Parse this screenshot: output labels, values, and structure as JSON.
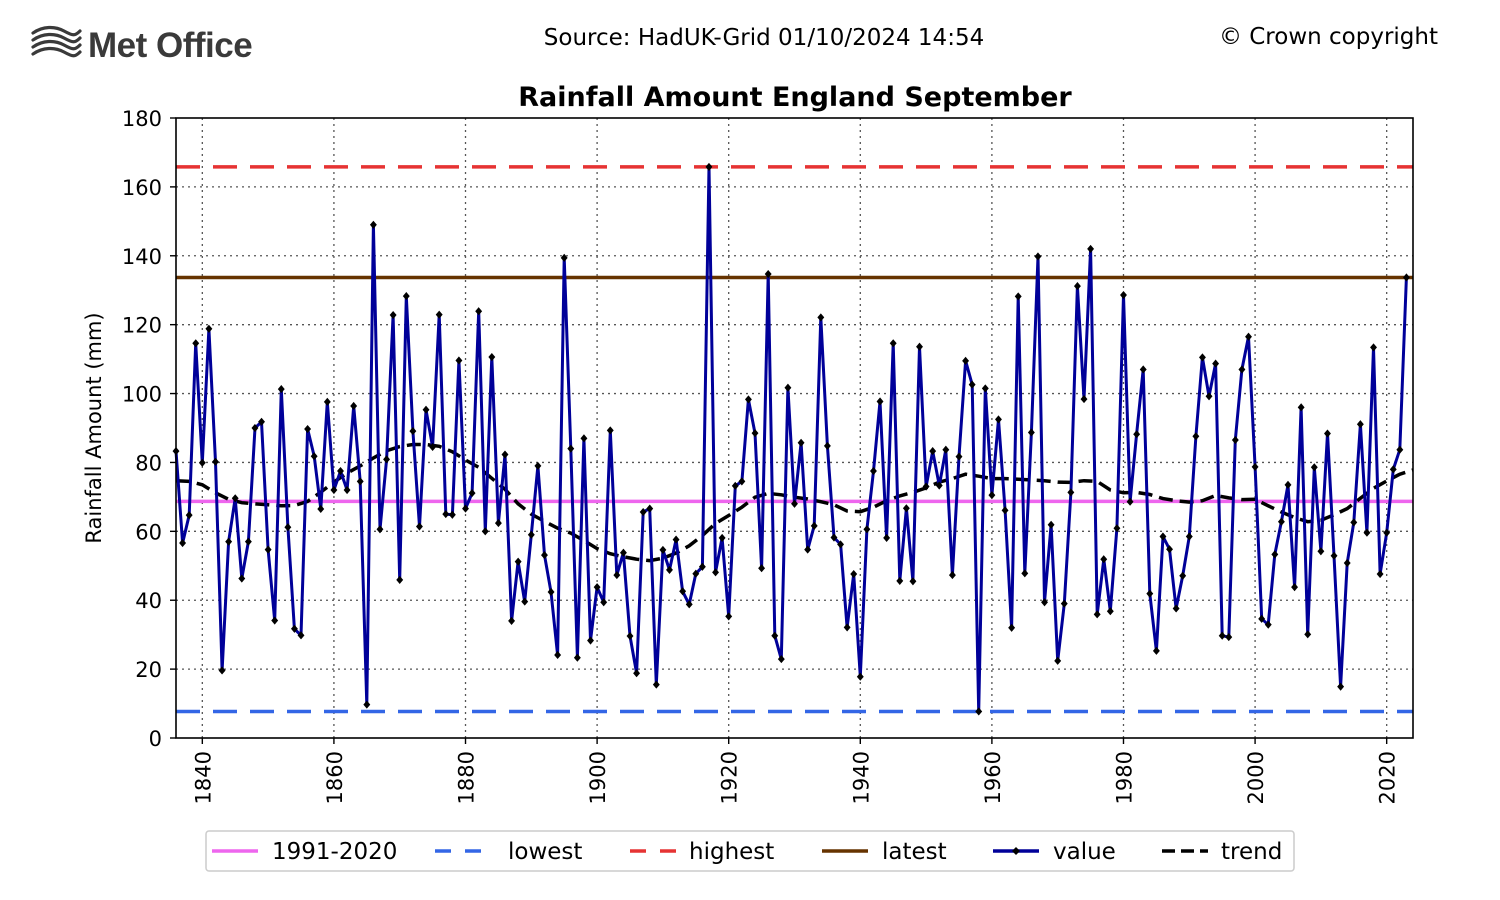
{
  "header": {
    "brand": "Met Office",
    "logo_icon": "met-office-waves-icon",
    "source": "Source: HadUK-Grid 01/10/2024 14:54",
    "copyright": "© Crown copyright"
  },
  "chart_data": {
    "type": "line",
    "title": "Rainfall Amount England September",
    "xlabel": "",
    "ylabel": "Rainfall Amount (mm)",
    "xlim": [
      1836,
      2024
    ],
    "ylim": [
      0,
      180
    ],
    "x_ticks": [
      1840,
      1860,
      1880,
      1900,
      1920,
      1940,
      1960,
      1980,
      2000,
      2020
    ],
    "y_ticks": [
      0,
      20,
      40,
      60,
      80,
      100,
      120,
      140,
      160,
      180
    ],
    "grid": true,
    "legend_position": "bottom",
    "references": [
      {
        "name": "1991-2020",
        "value": 68.7,
        "color": "#ee66ee",
        "style": "solid"
      },
      {
        "name": "lowest",
        "value": 7.7,
        "color": "#3366e6",
        "style": "dashed"
      },
      {
        "name": "highest",
        "value": 165.8,
        "color": "#e63333",
        "style": "dashed"
      },
      {
        "name": "latest",
        "value": 133.7,
        "color": "#663300",
        "style": "solid"
      }
    ],
    "series": [
      {
        "name": "value",
        "color": "#000099",
        "marker": "diamond",
        "x_start": 1836,
        "values": [
          83.3,
          56.6,
          64.7,
          114.6,
          79.9,
          118.8,
          80.2,
          19.6,
          57.0,
          69.6,
          46.3,
          57.0,
          90.0,
          91.8,
          54.7,
          34.1,
          101.3,
          61.2,
          31.7,
          29.8,
          89.7,
          81.8,
          66.5,
          97.6,
          72.0,
          77.5,
          72.0,
          96.4,
          74.5,
          9.7,
          149.0,
          60.6,
          80.9,
          122.8,
          45.9,
          128.3,
          89.1,
          61.4,
          95.3,
          84.5,
          122.9,
          65.0,
          64.8,
          109.6,
          66.6,
          71.1,
          123.9,
          60.0,
          110.6,
          62.4,
          82.3,
          34.0,
          51.2,
          39.6,
          59.0,
          79.0,
          53.1,
          42.4,
          24.1,
          139.4,
          84.0,
          23.3,
          87.0,
          28.3,
          43.8,
          39.4,
          89.3,
          47.3,
          53.8,
          29.6,
          18.8,
          65.6,
          66.6,
          15.5,
          54.6,
          48.8,
          57.6,
          42.6,
          38.8,
          47.7,
          49.7,
          165.8,
          48.1,
          58.1,
          35.3,
          73.2,
          74.5,
          98.3,
          88.5,
          49.3,
          134.7,
          29.7,
          22.9,
          101.7,
          68.0,
          85.7,
          54.7,
          61.6,
          122.1,
          84.8,
          58.2,
          56.2,
          32.1,
          47.6,
          17.8,
          60.6,
          77.5,
          97.7,
          58.1,
          114.6,
          45.6,
          66.7,
          45.5,
          113.6,
          73.0,
          83.3,
          73.3,
          83.7,
          47.3,
          81.7,
          109.5,
          102.6,
          7.7,
          101.5,
          70.5,
          92.5,
          66.1,
          32.0,
          128.2,
          47.8,
          88.7,
          139.8,
          39.4,
          61.9,
          22.4,
          39.0,
          71.3,
          131.2,
          98.4,
          142.0,
          35.9,
          51.9,
          36.8,
          60.9,
          128.6,
          68.6,
          88.2,
          107.0,
          41.9,
          25.3,
          58.5,
          54.8,
          37.6,
          47.1,
          58.5,
          87.6,
          110.5,
          99.2,
          108.7,
          29.7,
          29.3,
          86.5,
          107.0,
          116.5,
          78.7,
          34.6,
          32.9,
          53.3,
          62.8,
          73.5,
          43.8,
          96.0,
          30.1,
          78.6,
          54.2,
          88.4,
          52.9,
          14.9,
          50.8,
          62.6,
          91.1,
          59.6,
          113.4,
          47.6,
          59.6,
          78.0,
          83.7,
          133.7
        ]
      },
      {
        "name": "trend",
        "color": "#000000",
        "style": "dashed",
        "points": [
          [
            1836,
            74.7
          ],
          [
            1838,
            74.5
          ],
          [
            1840,
            73.5
          ],
          [
            1842,
            71.2
          ],
          [
            1844,
            69.3
          ],
          [
            1846,
            68.3
          ],
          [
            1848,
            68.0
          ],
          [
            1850,
            67.7
          ],
          [
            1852,
            67.4
          ],
          [
            1854,
            67.5
          ],
          [
            1856,
            68.7
          ],
          [
            1858,
            71.4
          ],
          [
            1860,
            74.3
          ],
          [
            1862,
            76.9
          ],
          [
            1864,
            79.0
          ],
          [
            1866,
            81.3
          ],
          [
            1868,
            83.4
          ],
          [
            1870,
            84.6
          ],
          [
            1872,
            85.2
          ],
          [
            1874,
            85.2
          ],
          [
            1876,
            84.7
          ],
          [
            1878,
            83.1
          ],
          [
            1880,
            80.7
          ],
          [
            1882,
            78.6
          ],
          [
            1884,
            75.4
          ],
          [
            1886,
            72.2
          ],
          [
            1888,
            68.0
          ],
          [
            1890,
            65.0
          ],
          [
            1892,
            62.9
          ],
          [
            1894,
            60.9
          ],
          [
            1896,
            59.5
          ],
          [
            1898,
            57.3
          ],
          [
            1900,
            55.0
          ],
          [
            1902,
            53.5
          ],
          [
            1904,
            52.6
          ],
          [
            1906,
            51.9
          ],
          [
            1908,
            51.5
          ],
          [
            1910,
            52.2
          ],
          [
            1912,
            53.7
          ],
          [
            1914,
            55.8
          ],
          [
            1916,
            58.8
          ],
          [
            1918,
            62.3
          ],
          [
            1920,
            64.6
          ],
          [
            1922,
            67.0
          ],
          [
            1924,
            69.9
          ],
          [
            1926,
            71.0
          ],
          [
            1928,
            70.6
          ],
          [
            1930,
            69.9
          ],
          [
            1932,
            69.4
          ],
          [
            1934,
            68.6
          ],
          [
            1936,
            67.7
          ],
          [
            1938,
            65.9
          ],
          [
            1940,
            65.7
          ],
          [
            1942,
            67.0
          ],
          [
            1944,
            68.9
          ],
          [
            1946,
            70.3
          ],
          [
            1948,
            71.3
          ],
          [
            1950,
            72.6
          ],
          [
            1952,
            74.3
          ],
          [
            1954,
            75.3
          ],
          [
            1956,
            76.6
          ],
          [
            1958,
            76.0
          ],
          [
            1960,
            75.3
          ],
          [
            1962,
            75.3
          ],
          [
            1964,
            75.1
          ],
          [
            1966,
            74.9
          ],
          [
            1968,
            74.7
          ],
          [
            1970,
            74.3
          ],
          [
            1972,
            74.2
          ],
          [
            1974,
            74.7
          ],
          [
            1976,
            74.5
          ],
          [
            1978,
            72.0
          ],
          [
            1980,
            71.2
          ],
          [
            1982,
            71.3
          ],
          [
            1984,
            70.7
          ],
          [
            1986,
            69.5
          ],
          [
            1988,
            68.9
          ],
          [
            1990,
            68.5
          ],
          [
            1992,
            68.9
          ],
          [
            1994,
            70.4
          ],
          [
            1996,
            69.7
          ],
          [
            1998,
            69.2
          ],
          [
            2000,
            69.3
          ],
          [
            2002,
            67.4
          ],
          [
            2004,
            65.6
          ],
          [
            2006,
            64.0
          ],
          [
            2008,
            62.8
          ],
          [
            2010,
            63.2
          ],
          [
            2012,
            64.8
          ],
          [
            2014,
            66.6
          ],
          [
            2016,
            69.6
          ],
          [
            2018,
            72.5
          ],
          [
            2020,
            74.6
          ],
          [
            2022,
            76.6
          ],
          [
            2024,
            77.8
          ]
        ]
      }
    ],
    "legend": [
      "1991-2020",
      "lowest",
      "highest",
      "latest",
      "value",
      "trend"
    ]
  }
}
